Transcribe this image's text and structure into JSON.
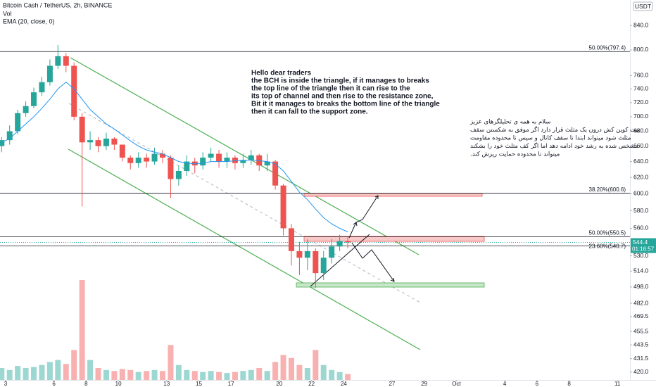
{
  "chart_data": {
    "type": "candlestick",
    "title": "Bitcoin Cash / TetherUS, 2h, BINANCE",
    "volume_name": "Vol",
    "up_color": "#26a69a",
    "down_color": "#ef5350",
    "ema_color": "#2196f3",
    "log_scale": true,
    "xlim": [
      2.65,
      41.78
    ],
    "xticks": [
      3,
      6,
      8,
      10,
      13,
      15,
      17,
      20,
      22,
      24,
      27,
      29,
      {
        "value": 31,
        "label": "Oct"
      },
      {
        "value": 34,
        "label": "4"
      },
      {
        "value": 36,
        "label": "6"
      },
      {
        "value": 38,
        "label": "8"
      },
      {
        "value": 41,
        "label": "11"
      }
    ],
    "ylim": [
      413.5,
      884
    ],
    "yticks": [
      {
        "value": 840,
        "label": "840.0"
      },
      {
        "value": 800,
        "label": "800.0"
      },
      {
        "value": 760,
        "label": "760.0"
      },
      {
        "value": 740,
        "label": "740.0"
      },
      {
        "value": 720,
        "label": "720.0"
      },
      {
        "value": 700,
        "label": "700.0"
      },
      {
        "value": 680,
        "label": "680.0"
      },
      {
        "value": 660,
        "label": "660.0"
      },
      {
        "value": 640,
        "label": "640.0"
      },
      {
        "value": 620,
        "label": "620.0"
      },
      {
        "value": 600,
        "label": "600.0"
      },
      {
        "value": 580,
        "label": "580.0"
      },
      {
        "value": 560,
        "label": "560.0"
      },
      {
        "value": 530,
        "label": "530.0"
      },
      {
        "value": 514,
        "label": "514.0"
      },
      {
        "value": 498,
        "label": "498.0"
      },
      {
        "value": 482,
        "label": "482.0"
      },
      469.5,
      455.5,
      443.5,
      431.5,
      {
        "value": 420,
        "label": "420.0"
      }
    ],
    "vlim": [
      0,
      100
    ],
    "x": [
      2.75,
      3.25,
      3.75,
      4.25,
      4.75,
      5.25,
      5.75,
      6.25,
      6.75,
      7.25,
      7.75,
      8.25,
      8.75,
      9.25,
      9.75,
      10.25,
      10.75,
      11.25,
      11.75,
      12.25,
      12.75,
      13.25,
      13.75,
      14.25,
      14.75,
      15.25,
      15.75,
      16.25,
      16.75,
      17.25,
      17.75,
      18.25,
      18.75,
      19.25,
      19.75,
      20.25,
      20.75,
      21.25,
      21.75,
      22.25,
      22.75,
      23.25,
      23.75,
      24.25
    ],
    "open": [
      660,
      668,
      680,
      705,
      715,
      735,
      750,
      775,
      790,
      775,
      700,
      665,
      668,
      660,
      670,
      662,
      645,
      638,
      645,
      640,
      650,
      645,
      618,
      628,
      640,
      635,
      645,
      650,
      640,
      645,
      638,
      642,
      648,
      635,
      640,
      610,
      560,
      535,
      528,
      535,
      512,
      528,
      540,
      546
    ],
    "high": [
      672,
      688,
      710,
      722,
      742,
      758,
      785,
      808,
      795,
      780,
      705,
      680,
      672,
      678,
      672,
      662,
      648,
      652,
      650,
      658,
      655,
      648,
      635,
      648,
      645,
      652,
      658,
      655,
      652,
      648,
      650,
      655,
      650,
      650,
      642,
      612,
      565,
      545,
      548,
      538,
      535,
      548,
      553,
      550
    ],
    "low": [
      652,
      662,
      676,
      700,
      712,
      730,
      745,
      770,
      765,
      695,
      585,
      655,
      652,
      655,
      655,
      640,
      630,
      632,
      632,
      636,
      638,
      595,
      610,
      622,
      625,
      630,
      640,
      632,
      632,
      630,
      632,
      636,
      628,
      628,
      605,
      552,
      520,
      510,
      515,
      497,
      505,
      522,
      535,
      538
    ],
    "close": [
      668,
      680,
      705,
      715,
      735,
      750,
      775,
      790,
      775,
      700,
      665,
      668,
      660,
      670,
      662,
      645,
      638,
      645,
      640,
      650,
      645,
      618,
      628,
      640,
      635,
      645,
      650,
      640,
      645,
      638,
      642,
      648,
      635,
      640,
      610,
      560,
      535,
      528,
      535,
      512,
      528,
      540,
      546,
      544.4
    ],
    "volume": [
      12,
      10,
      14,
      12,
      13,
      15,
      18,
      20,
      16,
      30,
      100,
      20,
      12,
      10,
      9,
      11,
      10,
      8,
      9,
      10,
      9,
      35,
      15,
      10,
      9,
      8,
      9,
      8,
      7,
      8,
      9,
      10,
      12,
      9,
      18,
      25,
      22,
      15,
      12,
      30,
      15,
      10,
      8,
      6
    ],
    "ema": {
      "name": "EMA (20, close, 0)",
      "values": [
        665,
        670,
        680,
        690,
        700,
        712,
        725,
        740,
        750,
        740,
        725,
        710,
        700,
        690,
        683,
        675,
        667,
        660,
        655,
        652,
        650,
        645,
        640,
        638,
        637,
        638,
        640,
        640,
        640,
        641,
        641,
        642,
        641,
        640,
        637,
        628,
        615,
        602,
        593,
        582,
        572,
        565,
        560,
        556
      ]
    },
    "levels": [
      {
        "label": "50.00%(797.4)",
        "value": 797.4
      },
      {
        "label": "38.20%(600.6)",
        "value": 600.6
      },
      {
        "label": "50.00%(550.5)",
        "value": 550.5
      },
      {
        "label": "23.60%(540.7)",
        "value": 540.7
      }
    ],
    "last_price": 544.4,
    "countdown": "01:16:57",
    "currency": "USDT",
    "note_en": [
      "Hello dear traders",
      "the BCH is inside the triangle, if it manages to breaks",
      "the top line of the triangle then it can rise to the",
      "its top of channel and then rise to the resistance zone,",
      "Bit it it manages to breaks the bottom line of the triangle",
      "then it can fall to the support zone."
    ],
    "note_fa": [
      "سلام به همه ی تحلیلگرهای عزیز",
      "بیت کوین کش درون یک مثلث قرار دارد اگر موفق به شکستن سقف",
      "مثلث شود میتواند ابتدا تا سقف کانال و سپس تا محدوده مقاومت",
      "مشخص شده به رشد خود ادامه دهد اما اگر کف مثلث خود را بشکند",
      "میتواند تا محدوده حمایت ریزش کند."
    ]
  }
}
